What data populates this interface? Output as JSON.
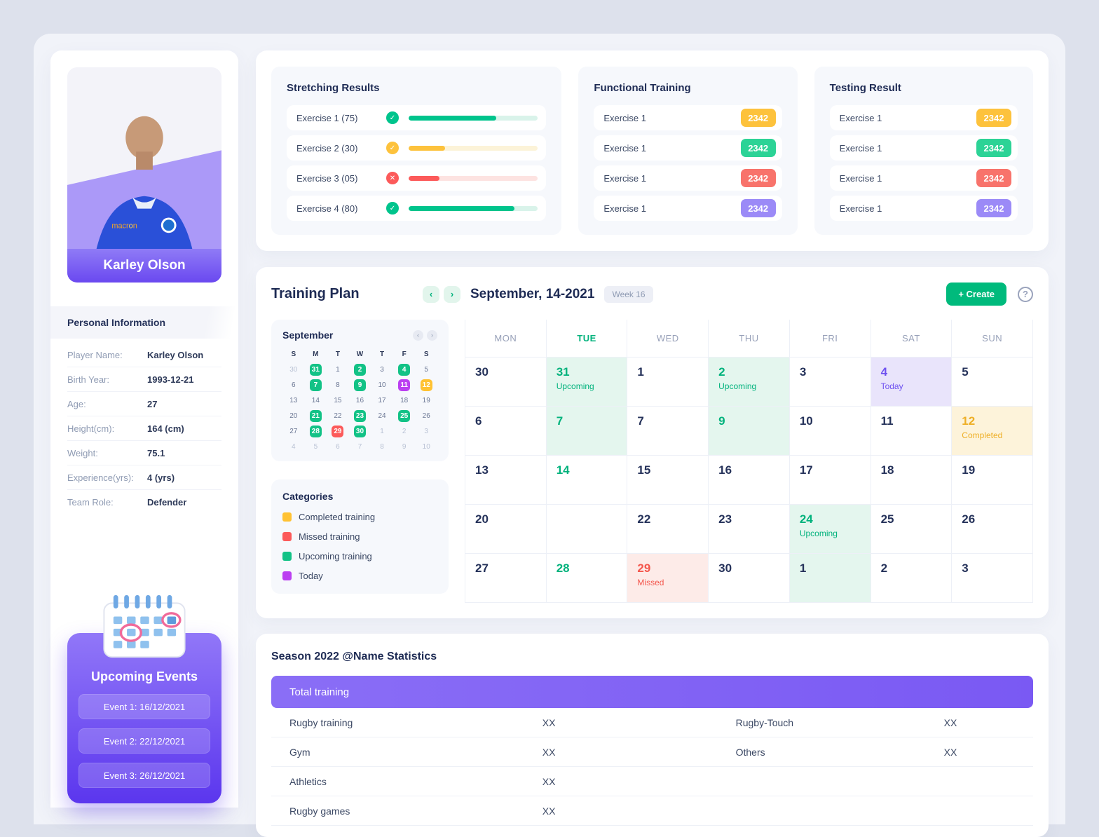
{
  "player": {
    "name": "Karley Olson",
    "personal_info_title": "Personal Information",
    "fields": [
      {
        "label": "Player Name:",
        "value": "Karley Olson"
      },
      {
        "label": "Birth Year:",
        "value": "1993-12-21"
      },
      {
        "label": "Age:",
        "value": "27"
      },
      {
        "label": "Height(cm):",
        "value": "164 (cm)"
      },
      {
        "label": "Weight:",
        "value": "75.1"
      },
      {
        "label": "Experience(yrs):",
        "value": "4 (yrs)"
      },
      {
        "label": "Team Role:",
        "value": "Defender"
      }
    ]
  },
  "upcoming_events": {
    "title": "Upcoming Events",
    "events": [
      "Event 1: 16/12/2021",
      "Event 2: 22/12/2021",
      "Event 3: 26/12/2021"
    ]
  },
  "stretching": {
    "title": "Stretching Results",
    "items": [
      {
        "label": "Exercise 1 (75)",
        "percent": 68,
        "status": "success"
      },
      {
        "label": "Exercise 2 (30)",
        "percent": 28,
        "status": "warning"
      },
      {
        "label": "Exercise 3 (05)",
        "percent": 24,
        "status": "danger"
      },
      {
        "label": "Exercise 4 (80)",
        "percent": 82,
        "status": "success"
      }
    ]
  },
  "functional_training": {
    "title": "Functional Training",
    "items": [
      {
        "label": "Exercise 1",
        "value": "2342",
        "color": "yellow"
      },
      {
        "label": "Exercise 1",
        "value": "2342",
        "color": "green"
      },
      {
        "label": "Exercise 1",
        "value": "2342",
        "color": "red"
      },
      {
        "label": "Exercise 1",
        "value": "2342",
        "color": "purple"
      }
    ]
  },
  "testing_result": {
    "title": "Testing Result",
    "items": [
      {
        "label": "Exercise 1",
        "value": "2342",
        "color": "yellow"
      },
      {
        "label": "Exercise 1",
        "value": "2342",
        "color": "green"
      },
      {
        "label": "Exercise 1",
        "value": "2342",
        "color": "red"
      },
      {
        "label": "Exercise 1",
        "value": "2342",
        "color": "purple"
      }
    ]
  },
  "training_plan": {
    "title": "Training Plan",
    "date_label": "September, 14-2021",
    "week_label": "Week 16",
    "create_label": "+ Create",
    "active_weekday": "TUE",
    "weekdays": [
      "MON",
      "TUE",
      "WED",
      "THU",
      "FRI",
      "SAT",
      "SUN"
    ],
    "mini_calendar": {
      "month": "September",
      "day_headers": [
        "S",
        "M",
        "T",
        "W",
        "T",
        "F",
        "S"
      ],
      "weeks": [
        [
          {
            "day": "30",
            "muted": true
          },
          {
            "day": "31",
            "type": "green"
          },
          {
            "day": "1"
          },
          {
            "day": "2",
            "type": "green"
          },
          {
            "day": "3"
          },
          {
            "day": "4",
            "type": "green"
          },
          {
            "day": "5"
          }
        ],
        [
          {
            "day": "6"
          },
          {
            "day": "7",
            "type": "green"
          },
          {
            "day": "8"
          },
          {
            "day": "9",
            "type": "green"
          },
          {
            "day": "10"
          },
          {
            "day": "11",
            "type": "magenta"
          },
          {
            "day": "12",
            "type": "yellow"
          }
        ],
        [
          {
            "day": "13"
          },
          {
            "day": "14"
          },
          {
            "day": "15"
          },
          {
            "day": "16"
          },
          {
            "day": "17"
          },
          {
            "day": "18"
          },
          {
            "day": "19"
          }
        ],
        [
          {
            "day": "20"
          },
          {
            "day": "21",
            "type": "green"
          },
          {
            "day": "22"
          },
          {
            "day": "23",
            "type": "green"
          },
          {
            "day": "24"
          },
          {
            "day": "25",
            "type": "green"
          },
          {
            "day": "26"
          }
        ],
        [
          {
            "day": "27"
          },
          {
            "day": "28",
            "type": "green"
          },
          {
            "day": "29",
            "type": "red"
          },
          {
            "day": "30",
            "type": "green"
          },
          {
            "day": "1",
            "muted": true
          },
          {
            "day": "2",
            "muted": true
          },
          {
            "day": "3",
            "muted": true
          }
        ],
        [
          {
            "day": "4",
            "muted": true
          },
          {
            "day": "5",
            "muted": true
          },
          {
            "day": "6",
            "muted": true
          },
          {
            "day": "7",
            "muted": true
          },
          {
            "day": "8",
            "muted": true
          },
          {
            "day": "9",
            "muted": true
          },
          {
            "day": "10",
            "muted": true
          }
        ]
      ]
    },
    "categories_title": "Categories",
    "categories": [
      {
        "label": "Completed training",
        "color": "#ffc233"
      },
      {
        "label": "Missed training",
        "color": "#fc5a5a"
      },
      {
        "label": "Upcoming training",
        "color": "#12c286"
      },
      {
        "label": "Today",
        "color": "#bb3ff1"
      }
    ],
    "weeks": [
      [
        {
          "day": "30"
        },
        {
          "day": "31",
          "tag": "Upcoming",
          "color": "green",
          "bg": "green"
        },
        {
          "day": "1"
        },
        {
          "day": "2",
          "tag": "Upcoming",
          "color": "green",
          "bg": "green"
        },
        {
          "day": "3"
        },
        {
          "day": "4",
          "tag": "Today",
          "color": "purple",
          "bg": "purple"
        },
        {
          "day": "5"
        }
      ],
      [
        {
          "day": "6"
        },
        {
          "day": "7",
          "color": "green",
          "bg": "green"
        },
        {
          "day": "7"
        },
        {
          "day": "9",
          "color": "green",
          "bg": "green"
        },
        {
          "day": "10"
        },
        {
          "day": "11"
        },
        {
          "day": "12",
          "tag": "Completed",
          "color": "yellow",
          "bg": "yellow"
        }
      ],
      [
        {
          "day": "13"
        },
        {
          "day": "14",
          "color": "green"
        },
        {
          "day": "15"
        },
        {
          "day": "16"
        },
        {
          "day": "17"
        },
        {
          "day": "18"
        },
        {
          "day": "19"
        }
      ],
      [
        {
          "day": "20"
        },
        {
          "day": ""
        },
        {
          "day": "22"
        },
        {
          "day": "23"
        },
        {
          "day": "24",
          "tag": "Upcoming",
          "color": "green",
          "bg": "green"
        },
        {
          "day": "25"
        },
        {
          "day": "26"
        }
      ],
      [
        {
          "day": "27"
        },
        {
          "day": "28",
          "color": "green"
        },
        {
          "day": "29",
          "tag": "Missed",
          "color": "red",
          "bg": "red"
        },
        {
          "day": "30"
        },
        {
          "day": "1",
          "bg": "green"
        },
        {
          "day": "2"
        },
        {
          "day": "3"
        }
      ]
    ]
  },
  "season_stats": {
    "title": "Season 2022 @Name Statistics",
    "header": "Total training",
    "rows": [
      {
        "left_label": "Rugby training",
        "left_value": "XX",
        "right_label": "Rugby-Touch",
        "right_value": "XX"
      },
      {
        "left_label": "Gym",
        "left_value": "XX",
        "right_label": "Others",
        "right_value": "XX"
      },
      {
        "left_label": "Athletics",
        "left_value": "XX",
        "right_label": "",
        "right_value": ""
      },
      {
        "left_label": "Rugby games",
        "left_value": "XX",
        "right_label": "",
        "right_value": ""
      }
    ]
  }
}
